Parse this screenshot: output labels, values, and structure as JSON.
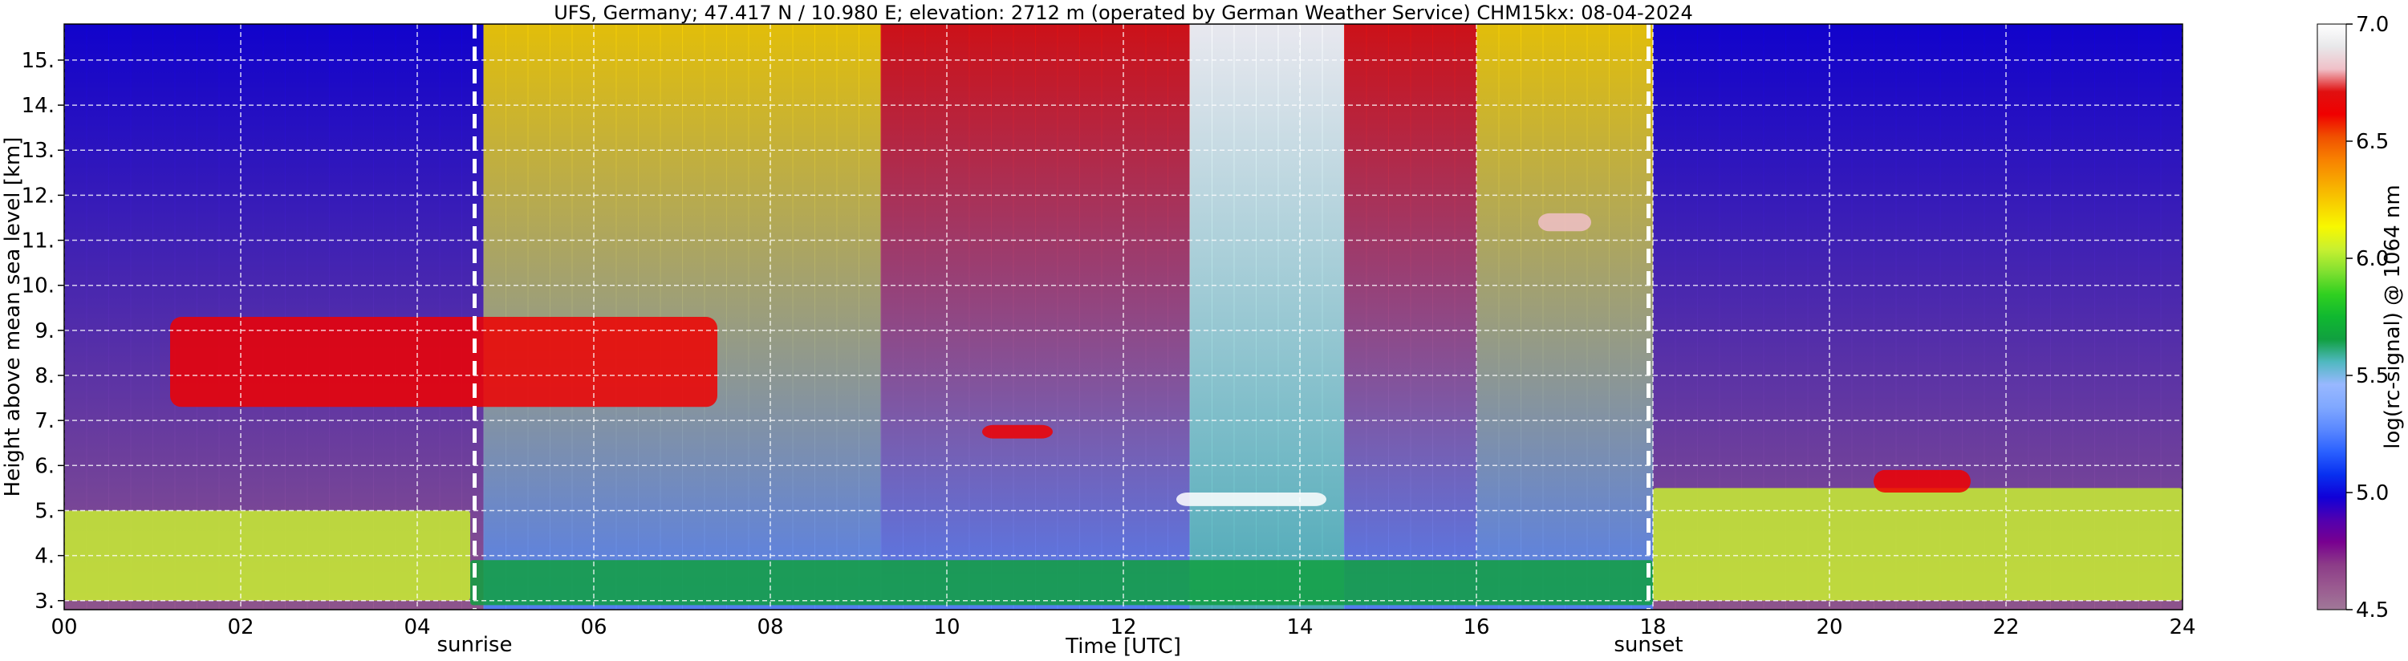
{
  "chart_data": {
    "type": "heatmap",
    "title": "UFS, Germany; 47.417 N / 10.980 E; elevation: 2712 m  (operated by German Weather Service)    CHM15kx: 08-04-2024",
    "xlabel": "Time [UTC]",
    "ylabel": "Height above mean sea level [km]",
    "xlim": [
      0,
      24
    ],
    "ylim": [
      2.8,
      15.8
    ],
    "x_ticks": [
      0,
      2,
      4,
      6,
      8,
      10,
      12,
      14,
      16,
      18,
      20,
      22,
      24
    ],
    "x_tick_labels": [
      "00",
      "02",
      "04",
      "06",
      "08",
      "10",
      "12",
      "14",
      "16",
      "18",
      "20",
      "22",
      "24"
    ],
    "y_ticks": [
      3,
      4,
      5,
      6,
      7,
      8,
      9,
      10,
      11,
      12,
      13,
      14,
      15
    ],
    "y_tick_labels": [
      "3.",
      "4.",
      "5.",
      "6.",
      "7.",
      "8.",
      "9.",
      "10.",
      "11.",
      "12.",
      "13.",
      "14.",
      "15."
    ],
    "grid": true,
    "colorbar": {
      "label": "log(rc-signal) @ 1064 nm",
      "range": [
        4.5,
        7.0
      ],
      "tick_values": [
        4.5,
        5.0,
        5.5,
        6.0,
        6.5,
        7.0
      ],
      "tick_labels": [
        "4.5",
        "5.0",
        "5.5",
        "6.0",
        "6.5",
        "7.0"
      ],
      "colors": [
        "#a07898",
        "#9a5a90",
        "#8c3c88",
        "#780090",
        "#5000b0",
        "#1000d8",
        "#0830f0",
        "#2a60ff",
        "#5a88ff",
        "#80a8ff",
        "#98b8ff",
        "#50b8c0",
        "#10a040",
        "#10b830",
        "#30d020",
        "#80e030",
        "#c8f030",
        "#f8f800",
        "#f8d000",
        "#f8a800",
        "#f88000",
        "#f05000",
        "#f00000",
        "#e01010",
        "#f0c0c8",
        "#e8e8ea",
        "#ffffff"
      ]
    },
    "events": [
      {
        "label": "sunrise",
        "x": 4.65
      },
      {
        "label": "sunset",
        "x": 17.95
      }
    ],
    "features": [
      {
        "kind": "boundary layer",
        "x": [
          0,
          4.6
        ],
        "y": [
          3.0,
          5.0
        ],
        "level": 6.0
      },
      {
        "kind": "boundary layer",
        "x": [
          4.6,
          18.0
        ],
        "y": [
          2.9,
          3.9
        ],
        "level": 5.7
      },
      {
        "kind": "boundary layer",
        "x": [
          18.0,
          24
        ],
        "y": [
          3.0,
          5.5
        ],
        "level": 6.0
      },
      {
        "kind": "cloud layer",
        "x": [
          1.2,
          7.4
        ],
        "y": [
          7.3,
          9.3
        ],
        "level": 6.6
      },
      {
        "kind": "cloud layer",
        "x": [
          10.4,
          11.2
        ],
        "y": [
          6.6,
          6.9
        ],
        "level": 6.6
      },
      {
        "kind": "cloud layer",
        "x": [
          12.6,
          14.3
        ],
        "y": [
          5.1,
          5.4
        ],
        "level": 7.0
      },
      {
        "kind": "cloud layer",
        "x": [
          16.7,
          17.3
        ],
        "y": [
          11.2,
          11.6
        ],
        "level": 6.8
      },
      {
        "kind": "cloud layer",
        "x": [
          20.5,
          21.6
        ],
        "y": [
          5.4,
          5.9
        ],
        "level": 6.6
      }
    ]
  }
}
